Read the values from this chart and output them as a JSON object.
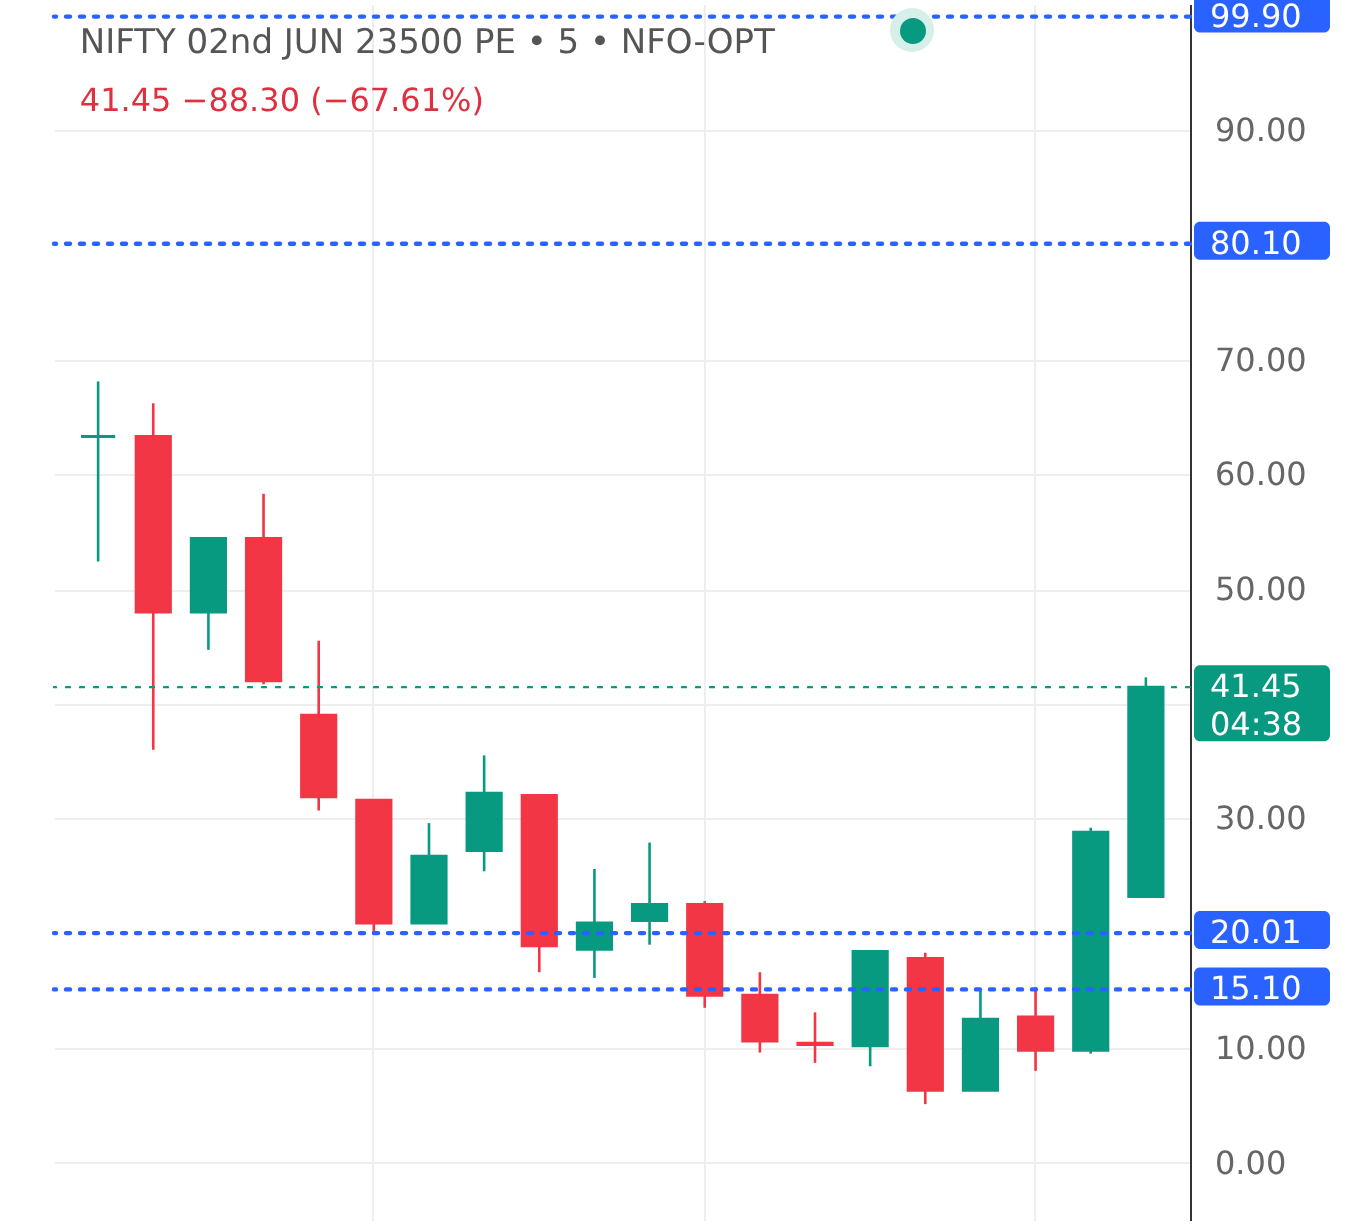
{
  "chart_data": {
    "type": "candlestick",
    "title": "NIFTY 02nd JUN 23500 PE • 5 • NFO-OPT",
    "subtitle": "41.45  −88.30 (−67.61%)",
    "categories": [
      null,
      null,
      null,
      null,
      null,
      null,
      null,
      null,
      null,
      null,
      null,
      null,
      null,
      null,
      null,
      null,
      null,
      null,
      null,
      null
    ],
    "ohlc": [
      [
        63.3,
        68.1,
        52.4,
        63.3
      ],
      [
        63.3,
        66.2,
        36.0,
        48.0
      ],
      [
        48.0,
        54.4,
        44.7,
        54.4
      ],
      [
        54.4,
        58.3,
        41.7,
        42.0
      ],
      [
        39.0,
        45.5,
        30.7,
        31.9
      ],
      [
        31.6,
        31.6,
        19.9,
        20.9
      ],
      [
        20.9,
        29.6,
        20.9,
        26.7
      ],
      [
        27.2,
        35.5,
        25.4,
        32.2
      ],
      [
        32.0,
        32.0,
        16.6,
        18.9
      ],
      [
        18.6,
        25.6,
        16.1,
        20.9
      ],
      [
        21.1,
        27.9,
        19.0,
        22.5
      ],
      [
        22.5,
        22.8,
        13.5,
        14.6
      ],
      [
        14.6,
        16.6,
        9.6,
        10.6
      ],
      [
        10.4,
        13.1,
        8.7,
        10.3
      ],
      [
        10.2,
        18.4,
        8.4,
        18.4
      ],
      [
        17.8,
        18.3,
        5.1,
        6.3
      ],
      [
        6.3,
        15.0,
        6.3,
        12.5
      ],
      [
        12.7,
        15.3,
        8.0,
        9.8
      ],
      [
        9.8,
        29.2,
        9.5,
        28.8
      ],
      [
        23.2,
        42.3,
        23.2,
        41.45
      ]
    ],
    "colors": [
      "#089981",
      "#f23645",
      "#089981",
      "#f23645",
      "#f23645",
      "#f23645",
      "#089981",
      "#089981",
      "#f23645",
      "#089981",
      "#089981",
      "#f23645",
      "#f23645",
      "#f23645",
      "#089981",
      "#f23645",
      "#089981",
      "#f23645",
      "#089981",
      "#089981"
    ],
    "ylim": [
      -5,
      101
    ],
    "yticks": [
      {
        "value": 0,
        "label": "0.00"
      },
      {
        "value": 10,
        "label": "10.00"
      },
      {
        "value": 30,
        "label": "30.00"
      },
      {
        "value": 40,
        "label": null
      },
      {
        "value": 50,
        "label": "50.00"
      },
      {
        "value": 60,
        "label": "60.00"
      },
      {
        "value": 70,
        "label": "70.00"
      },
      {
        "value": 90,
        "label": "90.00"
      }
    ],
    "grid": true,
    "ref_lines": [
      {
        "axis": "y",
        "value": 99.9,
        "label": "99.90",
        "color": "#2962ff",
        "line_style": "dotted"
      },
      {
        "axis": "y",
        "value": 80.1,
        "label": "80.10",
        "color": "#2962ff",
        "line_style": "dotted"
      },
      {
        "axis": "y",
        "value": 20.01,
        "label": "20.01",
        "color": "#2962ff",
        "line_style": "dotted"
      },
      {
        "axis": "y",
        "value": 15.1,
        "label": "15.10",
        "color": "#2962ff",
        "line_style": "dotted"
      },
      {
        "axis": "y",
        "value": 41.45,
        "label": "41.45\n04:38",
        "color": "#089981",
        "line_style": "dotted"
      }
    ]
  }
}
